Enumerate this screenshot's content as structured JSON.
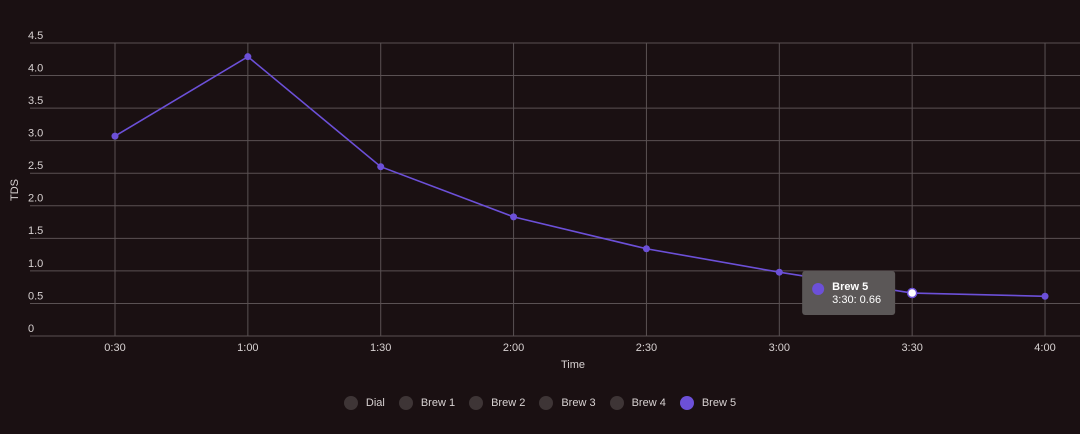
{
  "chart_data": {
    "type": "line",
    "x_label": "Time",
    "y_label": "TDS",
    "categories": [
      "0:30",
      "1:00",
      "1:30",
      "2:00",
      "2:30",
      "3:00",
      "3:30",
      "4:00"
    ],
    "series": [
      {
        "name": "Brew 5",
        "color": "#6c50d8",
        "values": [
          3.07,
          4.29,
          2.6,
          1.83,
          1.34,
          0.98,
          0.66,
          0.61
        ]
      }
    ],
    "ylim": [
      0,
      4.5
    ],
    "yticks": [
      0,
      0.5,
      {
        "value": 1,
        "label": "1.0"
      },
      1.5,
      {
        "value": 2,
        "label": "2.0"
      },
      2.5,
      {
        "value": 3,
        "label": "3.0"
      },
      3.5,
      {
        "value": 4,
        "label": "4.0"
      },
      4.5
    ],
    "grid": true,
    "legend": [
      {
        "name": "Dial",
        "color": "#3e3536"
      },
      {
        "name": "Brew 1",
        "color": "#3e3536"
      },
      {
        "name": "Brew 2",
        "color": "#3e3536"
      },
      {
        "name": "Brew 3",
        "color": "#3e3536"
      },
      {
        "name": "Brew 4",
        "color": "#3e3536"
      },
      {
        "name": "Brew 5",
        "color": "#6c50d8"
      }
    ],
    "tooltip": {
      "index": 6,
      "label": "3:30: 0.66"
    }
  }
}
